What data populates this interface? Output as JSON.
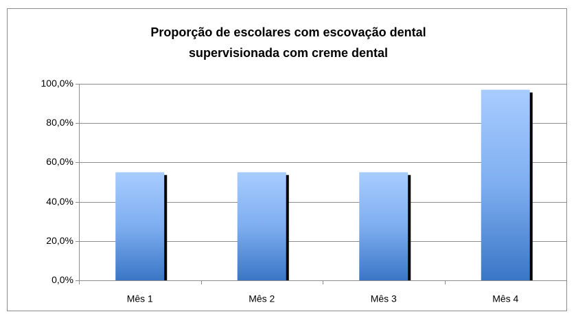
{
  "chart_data": {
    "type": "bar",
    "title": [
      "Proporção de escolares com escovação dental",
      "supervisionada com creme dental"
    ],
    "categories": [
      "Mês 1",
      "Mês 2",
      "Mês 3",
      "Mês 4"
    ],
    "values": [
      55,
      55,
      55,
      97
    ],
    "color": "#6a9fe6",
    "ylim": [
      0,
      100
    ],
    "yticks": [
      {
        "value": 0,
        "label": "0,0%"
      },
      {
        "value": 20,
        "label": "20,0%"
      },
      {
        "value": 40,
        "label": "40,0%"
      },
      {
        "value": 60,
        "label": "60,0%"
      },
      {
        "value": 80,
        "label": "80,0%"
      },
      {
        "value": 100,
        "label": "100,0%"
      }
    ],
    "grid": true
  }
}
